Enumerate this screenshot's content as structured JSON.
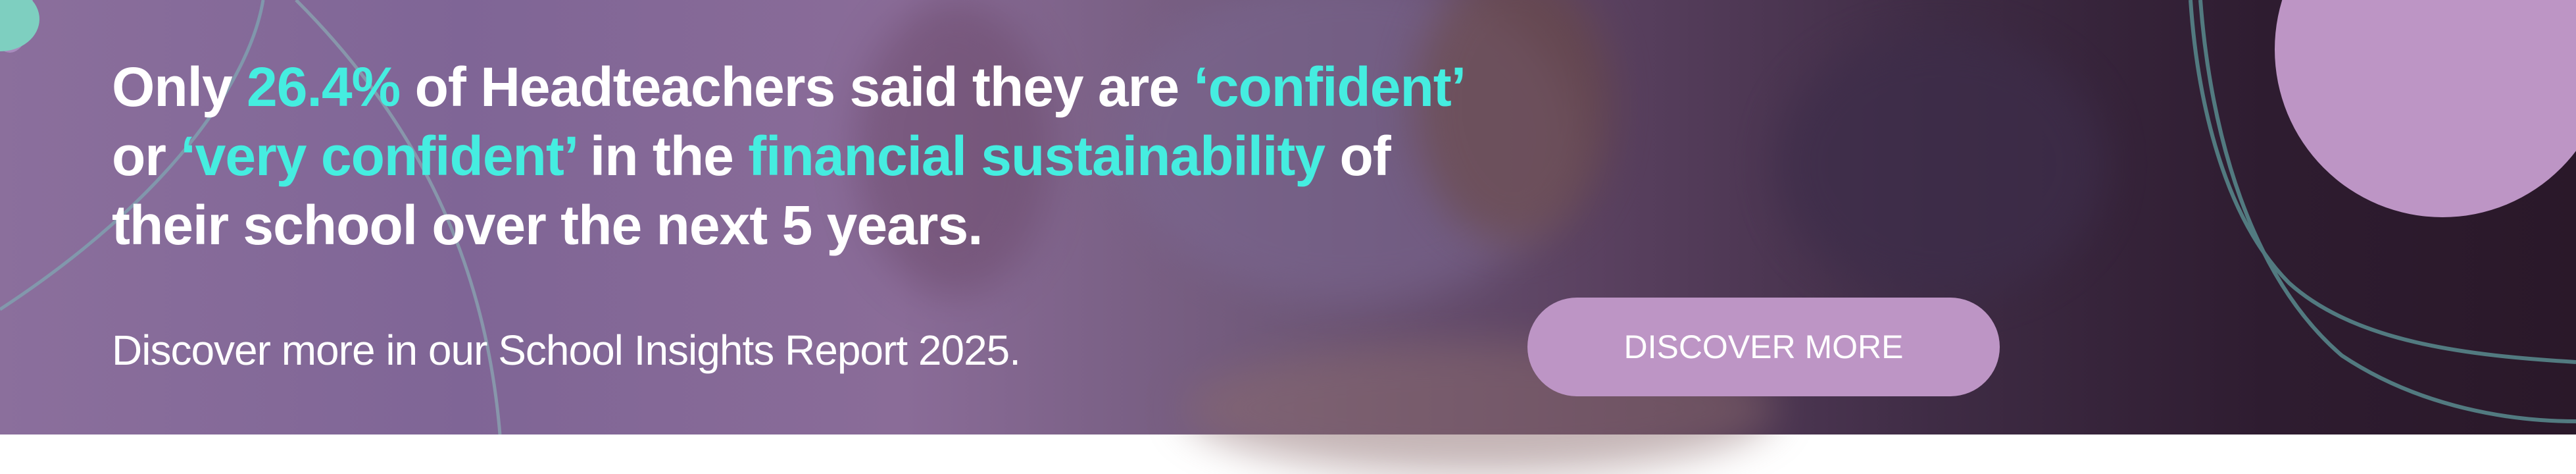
{
  "banner": {
    "headline": {
      "parts": [
        "Only ",
        "26.4%",
        " of Headteachers said they are ",
        "‘confident’",
        "or ",
        "‘very confident’",
        " in the ",
        "financial sustainability",
        " of",
        "their school over the next 5 years."
      ]
    },
    "subtitle": "Discover more in our School Insights Report 2025.",
    "cta_label": "DISCOVER MORE",
    "colors": {
      "highlight": "#45ede0",
      "accent": "#bd95c5",
      "text": "#ffffff"
    }
  }
}
